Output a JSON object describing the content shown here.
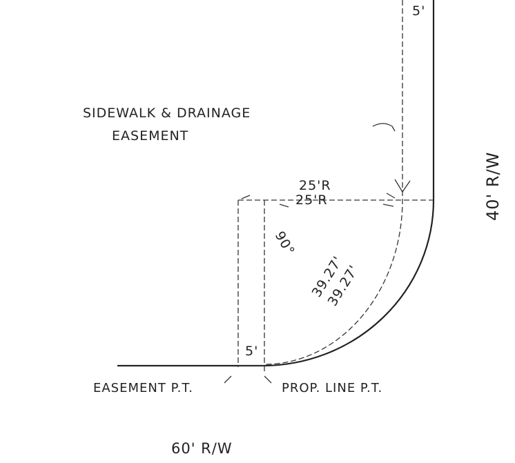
{
  "labels": {
    "top_width": "5'",
    "easement_line1": "SIDEWALK & DRAINAGE",
    "easement_line2": "EASEMENT",
    "right_row": "40' R/W",
    "outer_radius": "25'R",
    "inner_radius": "25'R",
    "angle": "90°",
    "outer_arc": "39.27'",
    "inner_arc": "39.27'",
    "bottom_width": "5'",
    "easement_pt": "EASEMENT P.T.",
    "prop_line_pt": "PROP. LINE P.T.",
    "bottom_row": "60' R/W"
  }
}
